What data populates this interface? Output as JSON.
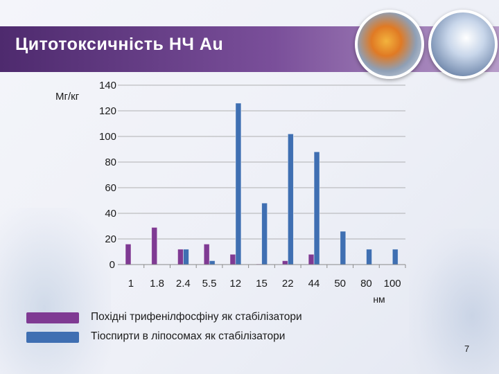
{
  "slide": {
    "title": "Цитотоксичність НЧ Au",
    "page_number": "7",
    "pictures": [
      "pills-photo",
      "lab-photo"
    ]
  },
  "colors": {
    "title_bar_start": "#4e2a6e",
    "title_bar_end": "#b79cc9",
    "series1": "#7f3a93",
    "series2": "#3f6fb2"
  },
  "chart_data": {
    "type": "bar",
    "title": "",
    "ylabel": "Мг/кг",
    "xlabel": "нм",
    "ylim": [
      0,
      140
    ],
    "yticks": [
      0,
      20,
      40,
      60,
      80,
      100,
      120,
      140
    ],
    "grid": true,
    "legend_position": "bottom-left",
    "categories": [
      "1",
      "1.8",
      "2.4",
      "5.5",
      "12",
      "15",
      "22",
      "44",
      "50",
      "80",
      "100"
    ],
    "series": [
      {
        "name": "Похідні трифенілфосфіну як стабілізатори",
        "color": "#7f3a93",
        "values": [
          16,
          29,
          12,
          16,
          8,
          0.5,
          3,
          8,
          0,
          0,
          0
        ]
      },
      {
        "name": "Тіоспирти в ліпосомах як стабілізатори",
        "color": "#3f6fb2",
        "values": [
          0,
          0,
          12,
          3,
          126,
          48,
          102,
          88,
          26,
          12,
          12
        ]
      }
    ]
  }
}
